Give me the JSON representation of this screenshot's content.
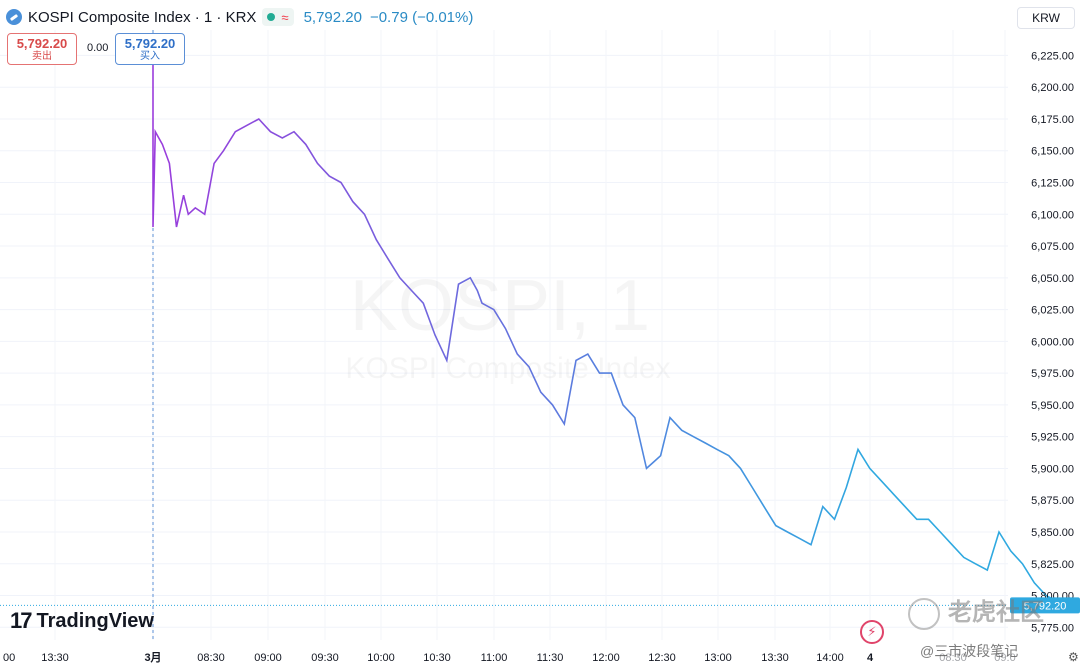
{
  "header": {
    "title": "KOSPI Composite Index · 1 · KRX",
    "approx_symbol": "≈",
    "last_price": "5,792.20",
    "change": "−0.79 (−0.01%)"
  },
  "trade": {
    "sell_price": "5,792.20",
    "sell_label": "卖出",
    "spread": "0.00",
    "buy_price": "5,792.20",
    "buy_label": "买入"
  },
  "currency": "KRW",
  "watermark": {
    "big": "KOSPI, 1",
    "small": "KOSPI Composite Index"
  },
  "branding": {
    "logo_mark": "17",
    "logo_word": "TradingView"
  },
  "overlay_watermark": {
    "top": "老虎社区",
    "bottom": "@三市波段笔记"
  },
  "price_tag": "5,792.20",
  "icons": {
    "lightning": "lightning-icon",
    "settings": "gear-icon",
    "symbol": "index-icon"
  },
  "colors": {
    "line_start": "#9b3cdc",
    "line_end": "#2fa9e0",
    "last_price": "#2a8bc5"
  },
  "chart_data": {
    "type": "line",
    "title": "",
    "xlabel": "",
    "ylabel": "",
    "ylim": [
      5765,
      6245
    ],
    "y_ticks": [
      "6,225.00",
      "6,200.00",
      "6,175.00",
      "6,150.00",
      "6,125.00",
      "6,100.00",
      "6,075.00",
      "6,050.00",
      "6,025.00",
      "6,000.00",
      "5,975.00",
      "5,950.00",
      "5,925.00",
      "5,900.00",
      "5,875.00",
      "5,850.00",
      "5,825.00",
      "5,800.00",
      "5,775.00"
    ],
    "x_ticks": [
      "00",
      "13:30",
      "3月",
      "08:30",
      "09:00",
      "09:30",
      "10:00",
      "10:30",
      "11:00",
      "11:30",
      "12:00",
      "12:30",
      "13:00",
      "13:30",
      "14:00",
      "4",
      "08:30",
      "09:0"
    ],
    "grid": true,
    "series": [
      {
        "x": [
          "08:00",
          "08:00",
          "08:01",
          "08:04",
          "08:07",
          "08:10",
          "08:13",
          "08:15",
          "08:18",
          "08:22",
          "08:26",
          "08:30",
          "08:35",
          "08:40",
          "08:45",
          "08:50",
          "08:55",
          "09:00",
          "09:05",
          "09:10",
          "09:15",
          "09:20",
          "09:25",
          "09:30",
          "09:35",
          "09:40",
          "09:45",
          "09:50",
          "09:55",
          "10:00",
          "10:05",
          "10:10",
          "10:15",
          "10:18",
          "10:20",
          "10:25",
          "10:30",
          "10:35",
          "10:40",
          "10:45",
          "10:50",
          "10:55",
          "11:00",
          "11:05",
          "11:10",
          "11:15",
          "11:20",
          "11:25",
          "11:30",
          "11:33",
          "11:36",
          "11:40",
          "11:45",
          "11:50",
          "11:55",
          "12:00",
          "12:05",
          "12:10",
          "12:15",
          "12:20",
          "12:25",
          "12:30",
          "12:35",
          "12:40",
          "12:45",
          "12:50",
          "12:55",
          "13:00",
          "13:05",
          "13:10",
          "13:15",
          "13:20",
          "13:25",
          "13:30",
          "13:35",
          "13:40",
          "13:45",
          "13:50",
          "13:55",
          "14:00",
          "14:05",
          "14:10",
          "14:15",
          "14:20",
          "14:25",
          "14:30"
        ],
        "y": [
          6240,
          6090,
          6165,
          6155,
          6140,
          6090,
          6115,
          6100,
          6105,
          6100,
          6140,
          6150,
          6165,
          6170,
          6175,
          6165,
          6160,
          6165,
          6155,
          6140,
          6130,
          6125,
          6110,
          6100,
          6080,
          6065,
          6050,
          6040,
          6030,
          6005,
          5985,
          6045,
          6050,
          6040,
          6030,
          6025,
          6010,
          5990,
          5980,
          5960,
          5950,
          5935,
          5985,
          5990,
          5975,
          5975,
          5950,
          5940,
          5900,
          5905,
          5910,
          5940,
          5930,
          5925,
          5920,
          5915,
          5910,
          5900,
          5885,
          5870,
          5855,
          5850,
          5845,
          5840,
          5870,
          5860,
          5885,
          5915,
          5900,
          5890,
          5880,
          5870,
          5860,
          5860,
          5850,
          5840,
          5830,
          5825,
          5820,
          5850,
          5835,
          5825,
          5810,
          5800,
          5795,
          5792.2
        ]
      }
    ],
    "last_value": 5792.2
  }
}
